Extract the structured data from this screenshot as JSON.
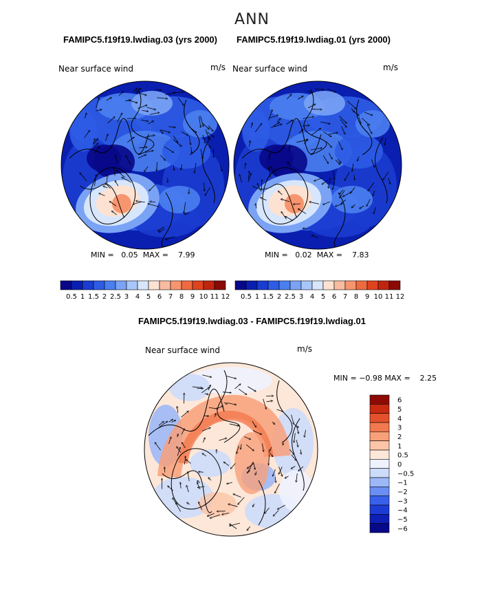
{
  "season": "ANN",
  "colors": {
    "abs_scale": [
      "#08088a",
      "#0a1fb0",
      "#1b3cd0",
      "#2e5ce6",
      "#4a7fef",
      "#7aa3f5",
      "#a9c6fa",
      "#d7e6fc",
      "#fde2d2",
      "#f9bca0",
      "#f7956f",
      "#f06a40",
      "#e0431f",
      "#c0260f",
      "#8b0a05"
    ],
    "diff_scale": [
      "#08088a",
      "#0e1fb5",
      "#1d3cd6",
      "#3860ea",
      "#6a8ef3",
      "#9db8f7",
      "#cddcfb",
      "#eef2fe",
      "#fde7d8",
      "#fbc6a8",
      "#f8a07a",
      "#f2794f",
      "#e4502b",
      "#c92b12",
      "#8e0a06"
    ]
  },
  "panels": {
    "left": {
      "title": "FAMIPC5.f19f19.lwdiag.03 (yrs 2000)",
      "variable": "Near surface wind",
      "units": "m/s",
      "min_label": "MIN =",
      "min": "0.05",
      "max_label": "MAX =",
      "max": "7.99"
    },
    "right": {
      "title": "FAMIPC5.f19f19.lwdiag.01 (yrs 2000)",
      "variable": "Near surface wind",
      "units": "m/s",
      "min_label": "MIN =",
      "min": "0.02",
      "max_label": "MAX =",
      "max": "7.83"
    },
    "diff": {
      "title": "FAMIPC5.f19f19.lwdiag.03 - FAMIPC5.f19f19.lwdiag.01",
      "variable": "Near surface wind",
      "units": "m/s",
      "min_label": "MIN =",
      "min": "−0.98",
      "max_label": "MAX =",
      "max": "2.25"
    }
  },
  "chart_data": [
    {
      "type": "heatmap",
      "title": "Near surface wind",
      "subtitle": "FAMIPC5.f19f19.lwdiag.03 (yrs 2000)",
      "units": "m/s",
      "projection": "polar stereographic (north)",
      "min": 0.05,
      "max": 7.99,
      "colorbar_levels": [
        "0.5",
        "1",
        "1.5",
        "2",
        "2.5",
        "3",
        "4",
        "5",
        "6",
        "7",
        "8",
        "9",
        "10",
        "11",
        "12"
      ]
    },
    {
      "type": "heatmap",
      "title": "Near surface wind",
      "subtitle": "FAMIPC5.f19f19.lwdiag.01 (yrs 2000)",
      "units": "m/s",
      "projection": "polar stereographic (north)",
      "min": 0.02,
      "max": 7.83,
      "colorbar_levels": [
        "0.5",
        "1",
        "1.5",
        "2",
        "2.5",
        "3",
        "4",
        "5",
        "6",
        "7",
        "8",
        "9",
        "10",
        "11",
        "12"
      ]
    },
    {
      "type": "heatmap",
      "title": "Near surface wind",
      "subtitle": "FAMIPC5.f19f19.lwdiag.03 - FAMIPC5.f19f19.lwdiag.01",
      "units": "m/s",
      "projection": "polar stereographic (north)",
      "min": -0.98,
      "max": 2.25,
      "colorbar_levels": [
        "6",
        "5",
        "4",
        "3",
        "2",
        "1",
        "0.5",
        "0",
        "−0.5",
        "−1",
        "−2",
        "−3",
        "−4",
        "−5",
        "−6"
      ]
    }
  ]
}
